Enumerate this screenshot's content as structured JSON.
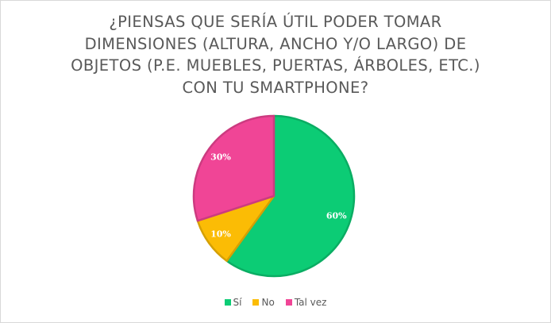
{
  "chart_data": {
    "type": "pie",
    "title": "¿PIENSAS QUE SERÍA ÚTIL PODER TOMAR DIMENSIONES (ALTURA, ANCHO Y/O LARGO) DE OBJETOS (P.E. MUEBLES, PUERTAS, ÁRBOLES, ETC.) CON TU SMARTPHONE?",
    "title_lines": [
      "¿PIENSAS QUE SERÍA ÚTIL PODER TOMAR",
      "DIMENSIONES (ALTURA, ANCHO Y/O LARGO) DE",
      "OBJETOS (P.E. MUEBLES, PUERTAS, ÁRBOLES, ETC.)",
      "CON TU SMARTPHONE?"
    ],
    "categories": [
      "Sí",
      "No",
      "Tal vez"
    ],
    "values": [
      60,
      10,
      30
    ],
    "data_labels": [
      "60%",
      "10%",
      "30%"
    ],
    "colors": [
      "#0ccc75",
      "#fbbc05",
      "#f04596"
    ],
    "legend_position": "bottom"
  }
}
